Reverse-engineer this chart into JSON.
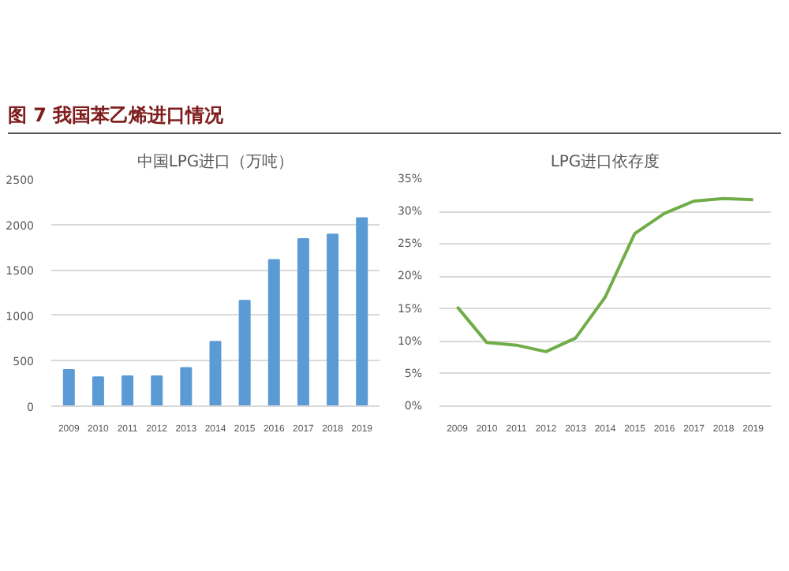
{
  "chart_data": [
    {
      "type": "bar",
      "title": "中国LPG进口（万吨）",
      "annotations": [
        "图 7  我国苯乙烯进口情况"
      ],
      "categories": [
        "2009",
        "2010",
        "2011",
        "2012",
        "2013",
        "2014",
        "2015",
        "2016",
        "2017",
        "2018",
        "2019"
      ],
      "values": [
        400,
        320,
        330,
        330,
        420,
        710,
        1160,
        1610,
        1840,
        1890,
        2070
      ],
      "color": "#5b9bd5",
      "ylim": [
        0,
        2500
      ],
      "yticks": [
        0,
        500,
        1000,
        1500,
        2000,
        2500
      ],
      "grid": "y"
    },
    {
      "type": "line",
      "title": "LPG进口依存度",
      "categories": [
        "2009",
        "2010",
        "2011",
        "2012",
        "2013",
        "2014",
        "2015",
        "2016",
        "2017",
        "2018",
        "2019"
      ],
      "values": [
        15.3,
        9.8,
        9.4,
        8.4,
        10.5,
        16.8,
        26.6,
        29.7,
        31.6,
        32.0,
        31.8
      ],
      "color": "#70ad47",
      "ylim": [
        0,
        35
      ],
      "yticks": [
        {
          "value": 0,
          "label": "0%"
        },
        {
          "value": 5,
          "label": "5%"
        },
        {
          "value": 10,
          "label": "10%"
        },
        {
          "value": 15,
          "label": "15%"
        },
        {
          "value": 20,
          "label": "20%"
        },
        {
          "value": 25,
          "label": "25%"
        },
        {
          "value": 30,
          "label": "30%"
        },
        {
          "value": 35,
          "label": "35%"
        }
      ],
      "grid": "y",
      "marker": "none",
      "line_style": "solid"
    }
  ]
}
